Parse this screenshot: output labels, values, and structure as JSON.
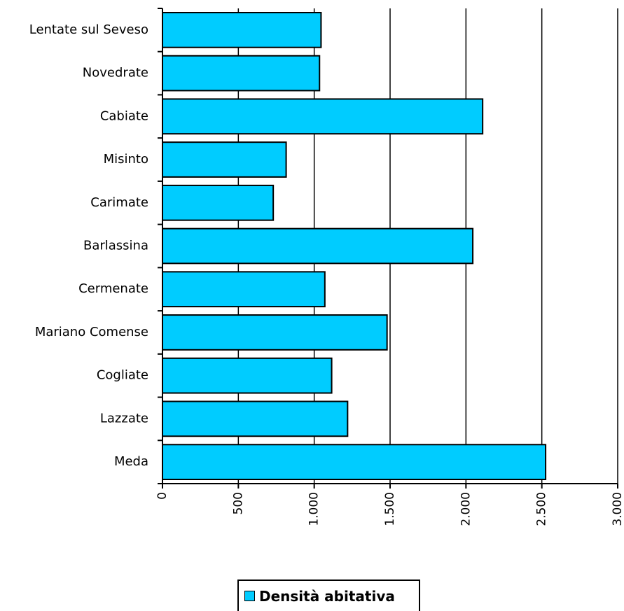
{
  "chart_data": {
    "type": "bar",
    "orientation": "horizontal",
    "categories": [
      "Lentate sul Seveso",
      "Novedrate",
      "Cabiate",
      "Misinto",
      "Carimate",
      "Barlassina",
      "Cermenate",
      "Mariano Comense",
      "Cogliate",
      "Lazzate",
      "Meda"
    ],
    "series": [
      {
        "name": "Densità abitativa",
        "values": [
          1045,
          1035,
          2110,
          815,
          730,
          2045,
          1070,
          1480,
          1115,
          1220,
          2525
        ],
        "color": "#00ccff"
      }
    ],
    "xlim": [
      0,
      3000
    ],
    "xticks": [
      0,
      500,
      1000,
      1500,
      2000,
      2500,
      3000
    ],
    "xtick_labels": [
      "0",
      "500",
      "1.000",
      "1.500",
      "2.000",
      "2.500",
      "3.000"
    ],
    "grid": true,
    "legend_position": "bottom"
  }
}
